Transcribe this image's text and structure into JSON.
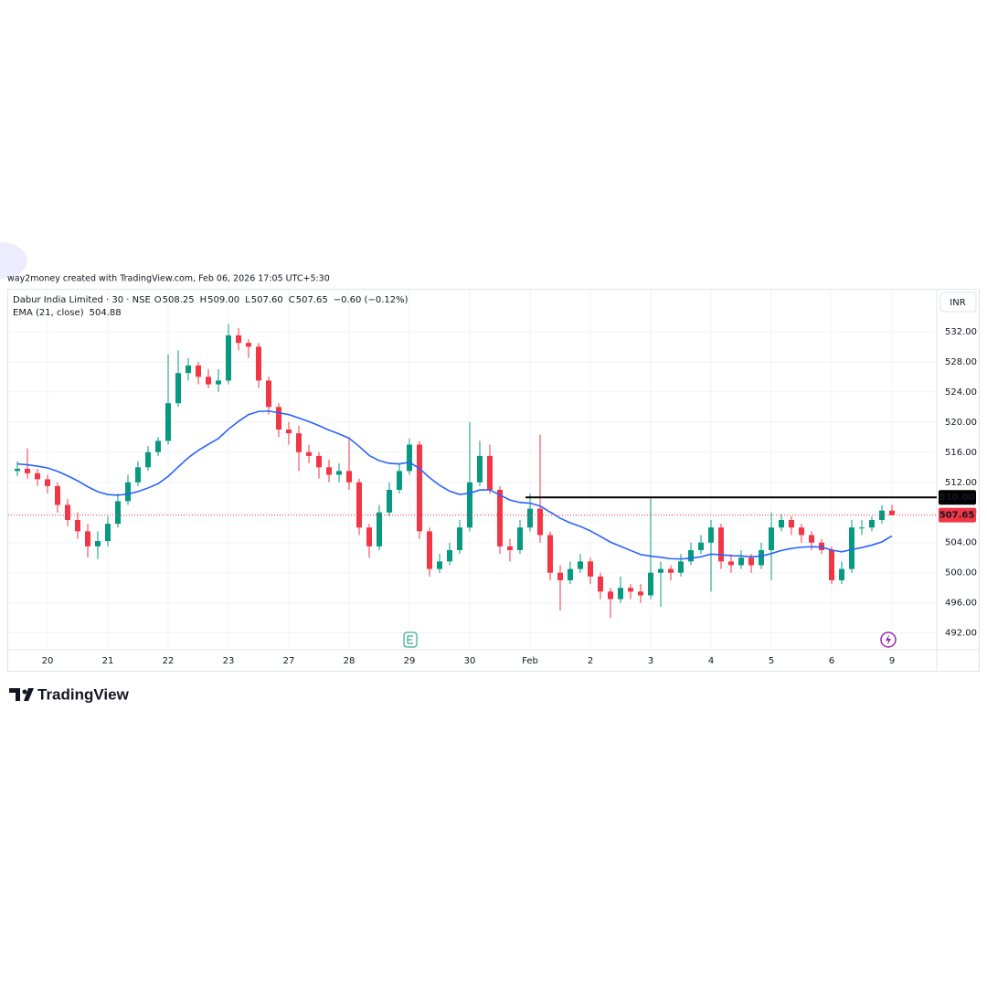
{
  "chart_data": {
    "type": "candlestick",
    "attribution": "way2money created with TradingView.com, Feb 06, 2026 17:05 UTC+5:30",
    "title": "Dabur India Limited · 30 · NSE",
    "ohlc_legend": [
      {
        "label": "O",
        "value": "508.25"
      },
      {
        "label": "H",
        "value": "509.00"
      },
      {
        "label": "L",
        "value": "507.60"
      },
      {
        "label": "C",
        "value": "507.65"
      }
    ],
    "change": "−0.60 (−0.12%)",
    "currency": "INR",
    "categories": [
      null,
      null,
      null,
      "20",
      null,
      null,
      null,
      null,
      null,
      "21",
      null,
      null,
      null,
      null,
      null,
      "22",
      null,
      null,
      null,
      null,
      null,
      "23",
      null,
      null,
      null,
      null,
      null,
      "27",
      null,
      null,
      null,
      null,
      null,
      "28",
      null,
      null,
      null,
      null,
      null,
      "29",
      null,
      null,
      null,
      null,
      null,
      "30",
      null,
      null,
      null,
      null,
      null,
      "Feb",
      null,
      null,
      null,
      null,
      null,
      "2",
      null,
      null,
      null,
      null,
      null,
      "3",
      null,
      null,
      null,
      null,
      null,
      "4",
      null,
      null,
      null,
      null,
      null,
      "5",
      null,
      null,
      null,
      null,
      null,
      "6",
      null,
      null,
      null,
      null,
      null,
      "9"
    ],
    "open": [
      513.5,
      513.8,
      513.2,
      512.4,
      511.5,
      509.0,
      507.0,
      505.5,
      503.5,
      504.2,
      506.5,
      509.5,
      512.0,
      514.0,
      516.0,
      517.5,
      522.5,
      526.5,
      527.5,
      526.0,
      525.0,
      525.5,
      531.5,
      530.5,
      530.0,
      525.5,
      522.0,
      519.0,
      518.5,
      516.0,
      515.5,
      514.0,
      513.0,
      513.5,
      512.0,
      506.0,
      503.5,
      508.0,
      511.0,
      513.5,
      517.0,
      505.5,
      500.5,
      501.5,
      503.0,
      506.0,
      512.0,
      515.5,
      511.0,
      503.5,
      503.0,
      506.0,
      508.5,
      505.0,
      500.0,
      499.0,
      500.5,
      501.5,
      499.5,
      497.5,
      496.5,
      498.0,
      497.5,
      497.0,
      500.0,
      500.5,
      500.0,
      501.5,
      503.0,
      504.0,
      506.0,
      501.5,
      501.0,
      502.0,
      501.0,
      503.0,
      506.0,
      507.0,
      506.0,
      505.0,
      504.0,
      503.0,
      499.0,
      500.5,
      506.0,
      506.0,
      507.0,
      508.25
    ],
    "high": [
      514.8,
      516.5,
      513.8,
      513.0,
      512.0,
      509.8,
      508.0,
      506.5,
      505.5,
      507.5,
      510.5,
      513.0,
      514.8,
      516.8,
      518.0,
      529.0,
      529.5,
      528.5,
      528.0,
      527.0,
      527.0,
      533.0,
      532.5,
      531.0,
      530.5,
      526.0,
      522.5,
      520.0,
      519.5,
      517.0,
      516.0,
      515.0,
      514.5,
      518.0,
      512.5,
      506.5,
      509.0,
      512.0,
      514.5,
      517.8,
      517.5,
      506.0,
      502.5,
      504.0,
      507.0,
      520.0,
      517.5,
      517.0,
      511.5,
      504.5,
      507.0,
      510.5,
      518.3,
      505.5,
      501.0,
      501.5,
      502.5,
      502.0,
      500.0,
      498.0,
      499.5,
      498.5,
      498.5,
      510.0,
      501.5,
      501.0,
      502.5,
      504.0,
      505.0,
      507.0,
      506.5,
      502.5,
      503.0,
      502.5,
      504.0,
      508.0,
      507.8,
      507.5,
      506.5,
      505.5,
      504.5,
      503.5,
      501.5,
      507.0,
      507.0,
      507.5,
      509.0,
      509.0
    ],
    "low": [
      512.8,
      512.5,
      511.5,
      510.5,
      508.0,
      506.2,
      504.5,
      502.0,
      501.8,
      503.5,
      506.0,
      509.0,
      511.5,
      513.5,
      515.5,
      517.0,
      522.0,
      525.5,
      525.0,
      524.5,
      524.0,
      525.0,
      529.5,
      528.5,
      524.5,
      521.0,
      518.0,
      517.0,
      513.5,
      514.5,
      512.5,
      512.0,
      512.0,
      511.0,
      505.0,
      502.0,
      503.0,
      507.5,
      510.5,
      513.0,
      504.5,
      499.5,
      500.0,
      501.0,
      502.5,
      505.5,
      511.5,
      510.5,
      502.5,
      501.5,
      502.5,
      505.5,
      504.0,
      499.0,
      495.0,
      498.5,
      500.0,
      498.5,
      496.5,
      494.0,
      496.0,
      496.5,
      496.0,
      496.5,
      495.5,
      499.0,
      499.5,
      501.0,
      502.5,
      497.5,
      500.5,
      500.0,
      500.5,
      500.0,
      500.5,
      499.0,
      505.5,
      505.0,
      504.0,
      503.0,
      502.5,
      498.5,
      498.5,
      500.0,
      505.0,
      505.5,
      506.5,
      507.6
    ],
    "close": [
      513.8,
      513.2,
      512.4,
      511.5,
      509.0,
      507.0,
      505.5,
      503.5,
      504.2,
      506.5,
      509.5,
      512.0,
      514.0,
      516.0,
      517.5,
      522.5,
      526.5,
      527.5,
      526.0,
      525.0,
      525.5,
      531.5,
      530.5,
      530.0,
      525.5,
      522.0,
      519.0,
      518.5,
      516.0,
      515.5,
      514.0,
      513.0,
      513.5,
      512.0,
      506.0,
      503.5,
      508.0,
      511.0,
      513.5,
      517.0,
      505.5,
      500.5,
      501.5,
      503.0,
      506.0,
      512.0,
      515.5,
      511.0,
      503.5,
      503.0,
      506.0,
      508.5,
      505.0,
      500.0,
      499.0,
      500.5,
      501.5,
      499.5,
      497.5,
      496.5,
      498.0,
      497.5,
      497.0,
      500.0,
      500.5,
      500.0,
      501.5,
      503.0,
      504.0,
      506.0,
      501.5,
      501.0,
      502.0,
      501.0,
      503.0,
      506.0,
      507.0,
      506.0,
      505.0,
      504.0,
      503.0,
      499.0,
      500.5,
      506.0,
      506.0,
      507.0,
      508.25,
      507.65
    ],
    "up_color": "#089981",
    "down_color": "#f23645",
    "ema": {
      "name": "EMA (21, close)",
      "color": "#2962ff",
      "last_label": "504.88",
      "values": [
        514.44,
        514.33,
        514.15,
        513.91,
        513.46,
        512.87,
        512.2,
        511.41,
        510.76,
        510.37,
        510.29,
        510.45,
        510.77,
        511.25,
        511.82,
        512.79,
        514.04,
        515.26,
        516.24,
        517.04,
        517.81,
        519.05,
        520.09,
        520.99,
        521.4,
        521.46,
        521.23,
        520.98,
        520.53,
        520.07,
        519.52,
        518.93,
        518.43,
        517.85,
        516.77,
        515.56,
        514.87,
        514.52,
        514.43,
        514.66,
        513.83,
        512.62,
        511.61,
        510.83,
        510.39,
        510.54,
        510.99,
        510.99,
        510.31,
        509.65,
        509.32,
        509.24,
        508.86,
        508.05,
        507.23,
        506.62,
        506.15,
        505.55,
        504.82,
        504.06,
        503.51,
        502.96,
        502.42,
        502.2,
        502.05,
        501.86,
        501.83,
        501.93,
        502.12,
        502.47,
        502.38,
        502.26,
        502.23,
        502.12,
        502.2,
        502.55,
        502.95,
        503.23,
        503.39,
        503.45,
        503.41,
        503.01,
        502.78,
        503.07,
        503.34,
        503.67,
        504.09,
        504.88
      ]
    },
    "ylim": [
      489.9,
      537.8
    ],
    "yticks": [
      {
        "value": 492,
        "label": "492.00"
      },
      {
        "value": 496,
        "label": "496.00"
      },
      {
        "value": 500,
        "label": "500.00"
      },
      {
        "value": 504,
        "label": "504.00"
      },
      {
        "value": 508,
        "label": "508.00"
      },
      {
        "value": 512,
        "label": "512.00"
      },
      {
        "value": 516,
        "label": "516.00"
      },
      {
        "value": 520,
        "label": "520.00"
      },
      {
        "value": 524,
        "label": "524.00"
      },
      {
        "value": 528,
        "label": "528.00"
      },
      {
        "value": 532,
        "label": "532.00"
      }
    ],
    "horizontal_line": {
      "value": 510,
      "label": "510.00",
      "color": "#000000"
    },
    "last_price": {
      "value": 507.65,
      "label": "507.65",
      "color": "#f23645"
    },
    "grid": true,
    "brand": "TradingView"
  }
}
